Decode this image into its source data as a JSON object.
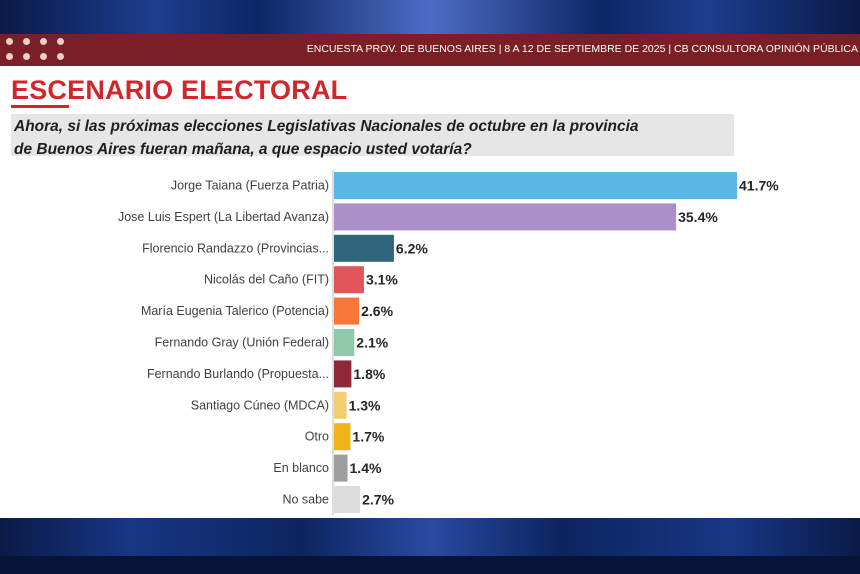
{
  "header": {
    "text": "ENCUESTA PROV. DE BUENOS AIRES | 8 A 12 DE SEPTIEMBRE DE 2025 | CB CONSULTORA OPINIÓN PÚBLICA"
  },
  "title": "ESCENARIO ELECTORAL",
  "question": {
    "line1": "Ahora, si las próximas elecciones Legislativas Nacionales de octubre en la provincia",
    "line2": "de Buenos Aires fueran mañana, a que espacio usted votaría?"
  },
  "chart_data": {
    "type": "bar",
    "orientation": "horizontal",
    "title": "",
    "xlabel": "",
    "ylabel": "",
    "grid": false,
    "value_suffix": "%",
    "categories": [
      "Jorge Taiana (Fuerza Patria)",
      "Jose Luis Espert (La Libertad Avanza)",
      "Florencio Randazzo (Provincias...",
      "Nicolás del Caño (FIT)",
      "María Eugenia Talerico (Potencia)",
      "Fernando Gray (Unión Federal)",
      "Fernando Burlando (Propuesta...",
      "Santiago Cúneo (MDCA)",
      "Otro",
      "En blanco",
      "No sabe"
    ],
    "values": [
      41.7,
      35.4,
      6.2,
      3.1,
      2.6,
      2.1,
      1.8,
      1.3,
      1.7,
      1.4,
      2.7
    ],
    "data_labels": [
      "41.7%",
      "35.4%",
      "6.2%",
      "3.1%",
      "2.6%",
      "2.1%",
      "1.8%",
      "1.3%",
      "1.7%",
      "1.4%",
      "2.7%"
    ],
    "colors": [
      "#5ab6e4",
      "#ab8fc8",
      "#2f667c",
      "#e0565a",
      "#f7773a",
      "#8fc9ac",
      "#8e2a37",
      "#f2cd72",
      "#efb418",
      "#9e9e9e",
      "#dcdcdc"
    ]
  }
}
